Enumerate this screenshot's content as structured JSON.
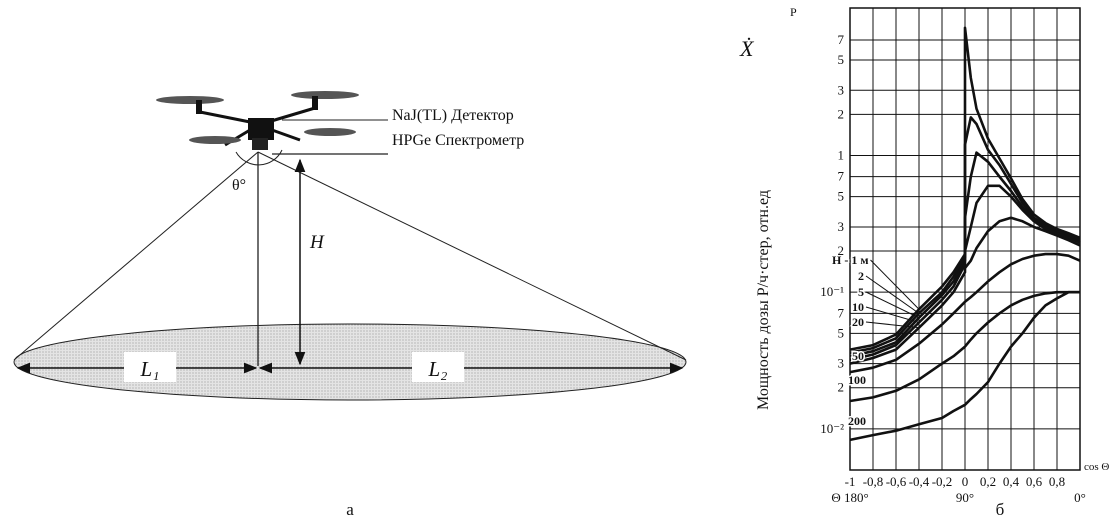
{
  "diagram": {
    "detector": "NaJ(TL) Детектор",
    "spectrometer": "HPGe Спектрометр",
    "angle": "θ°",
    "height": "H",
    "l1": "L₁",
    "l2": "L₂",
    "caption": "а"
  },
  "chart_data": {
    "type": "line",
    "symbol": "Ẋ",
    "y_unit": "Р",
    "ylabel": "Мощность дозы Р/ч·стер, отн.ед",
    "xlabel": "cos Θ",
    "caption": "б",
    "yscale": "log",
    "grid": true,
    "xlim": [
      -1,
      1
    ],
    "ylim": [
      0.005,
      12
    ],
    "xticks": [
      -1,
      {
        "value": -0.8,
        "label": "-0,8"
      },
      {
        "value": -0.6,
        "label": "-0,6"
      },
      {
        "value": -0.4,
        "label": "-0,4"
      },
      {
        "value": -0.2,
        "label": "-0,2"
      },
      0,
      {
        "value": 0.2,
        "label": "0,2"
      },
      {
        "value": 0.4,
        "label": "0,4"
      },
      {
        "value": 0.6,
        "label": "0,6"
      },
      {
        "value": 0.8,
        "label": "0,8"
      }
    ],
    "angle_ticks": [
      {
        "value": -1,
        "label": "Θ 180°"
      },
      {
        "value": 0,
        "label": "90°"
      },
      {
        "value": 1,
        "label": "0°"
      }
    ],
    "yticks": [
      7,
      5,
      3,
      2,
      1,
      {
        "value": 0.7,
        "label": "7"
      },
      {
        "value": 0.5,
        "label": "5"
      },
      {
        "value": 0.3,
        "label": "3"
      },
      {
        "value": 0.2,
        "label": "2"
      },
      {
        "value": 0.1,
        "label": "10⁻¹"
      },
      {
        "value": 0.07,
        "label": "7"
      },
      {
        "value": 0.05,
        "label": "5"
      },
      {
        "value": 0.03,
        "label": "3"
      },
      {
        "value": 0.02,
        "label": "2"
      },
      {
        "value": 0.01,
        "label": "10⁻²"
      }
    ],
    "x": [
      -1,
      -0.8,
      -0.6,
      -0.4,
      -0.2,
      -0.1,
      0,
      0,
      0.05,
      0.1,
      0.2,
      0.3,
      0.4,
      0.5,
      0.6,
      0.7,
      0.8,
      0.9,
      1
    ],
    "series": [
      {
        "name": "Н - 1 м",
        "color": "#111111",
        "values": [
          0.038,
          0.041,
          0.049,
          0.075,
          0.11,
          0.14,
          0.19,
          8.6,
          3.7,
          2.2,
          1.33,
          0.95,
          0.68,
          0.48,
          0.37,
          0.32,
          0.29,
          0.27,
          0.25
        ]
      },
      {
        "name": "2",
        "color": "#111111",
        "values": [
          0.036,
          0.039,
          0.046,
          0.07,
          0.1,
          0.13,
          0.18,
          1.2,
          1.9,
          1.7,
          1.1,
          0.85,
          0.62,
          0.45,
          0.35,
          0.31,
          0.28,
          0.26,
          0.24
        ]
      },
      {
        "name": "5",
        "color": "#111111",
        "values": [
          0.034,
          0.037,
          0.043,
          0.065,
          0.095,
          0.12,
          0.17,
          0.35,
          0.7,
          1.05,
          0.9,
          0.7,
          0.55,
          0.42,
          0.34,
          0.3,
          0.28,
          0.26,
          0.23
        ]
      },
      {
        "name": "10",
        "color": "#111111",
        "values": [
          0.032,
          0.035,
          0.041,
          0.06,
          0.088,
          0.11,
          0.16,
          0.2,
          0.3,
          0.45,
          0.6,
          0.6,
          0.5,
          0.4,
          0.33,
          0.29,
          0.27,
          0.25,
          0.23
        ]
      },
      {
        "name": "20",
        "color": "#111111",
        "values": [
          0.03,
          0.033,
          0.038,
          0.055,
          0.08,
          0.1,
          0.14,
          0.15,
          0.17,
          0.21,
          0.28,
          0.33,
          0.35,
          0.33,
          0.3,
          0.28,
          0.26,
          0.24,
          0.22
        ]
      },
      {
        "name": "50",
        "color": "#111111",
        "values": [
          0.026,
          0.028,
          0.032,
          0.042,
          0.058,
          0.07,
          0.085,
          0.085,
          0.092,
          0.1,
          0.12,
          0.14,
          0.16,
          0.175,
          0.185,
          0.19,
          0.19,
          0.185,
          0.17
        ]
      },
      {
        "name": "100",
        "color": "#111111",
        "values": [
          0.016,
          0.017,
          0.019,
          0.023,
          0.03,
          0.034,
          0.04,
          0.04,
          0.045,
          0.05,
          0.06,
          0.07,
          0.08,
          0.088,
          0.094,
          0.098,
          0.1,
          0.1,
          0.1
        ]
      },
      {
        "name": "200",
        "color": "#111111",
        "values": [
          0.0083,
          0.009,
          0.0097,
          0.0108,
          0.012,
          0.0135,
          0.015,
          0.015,
          0.0165,
          0.018,
          0.022,
          0.03,
          0.04,
          0.05,
          0.065,
          0.08,
          0.09,
          0.1,
          0.1
        ]
      }
    ]
  }
}
